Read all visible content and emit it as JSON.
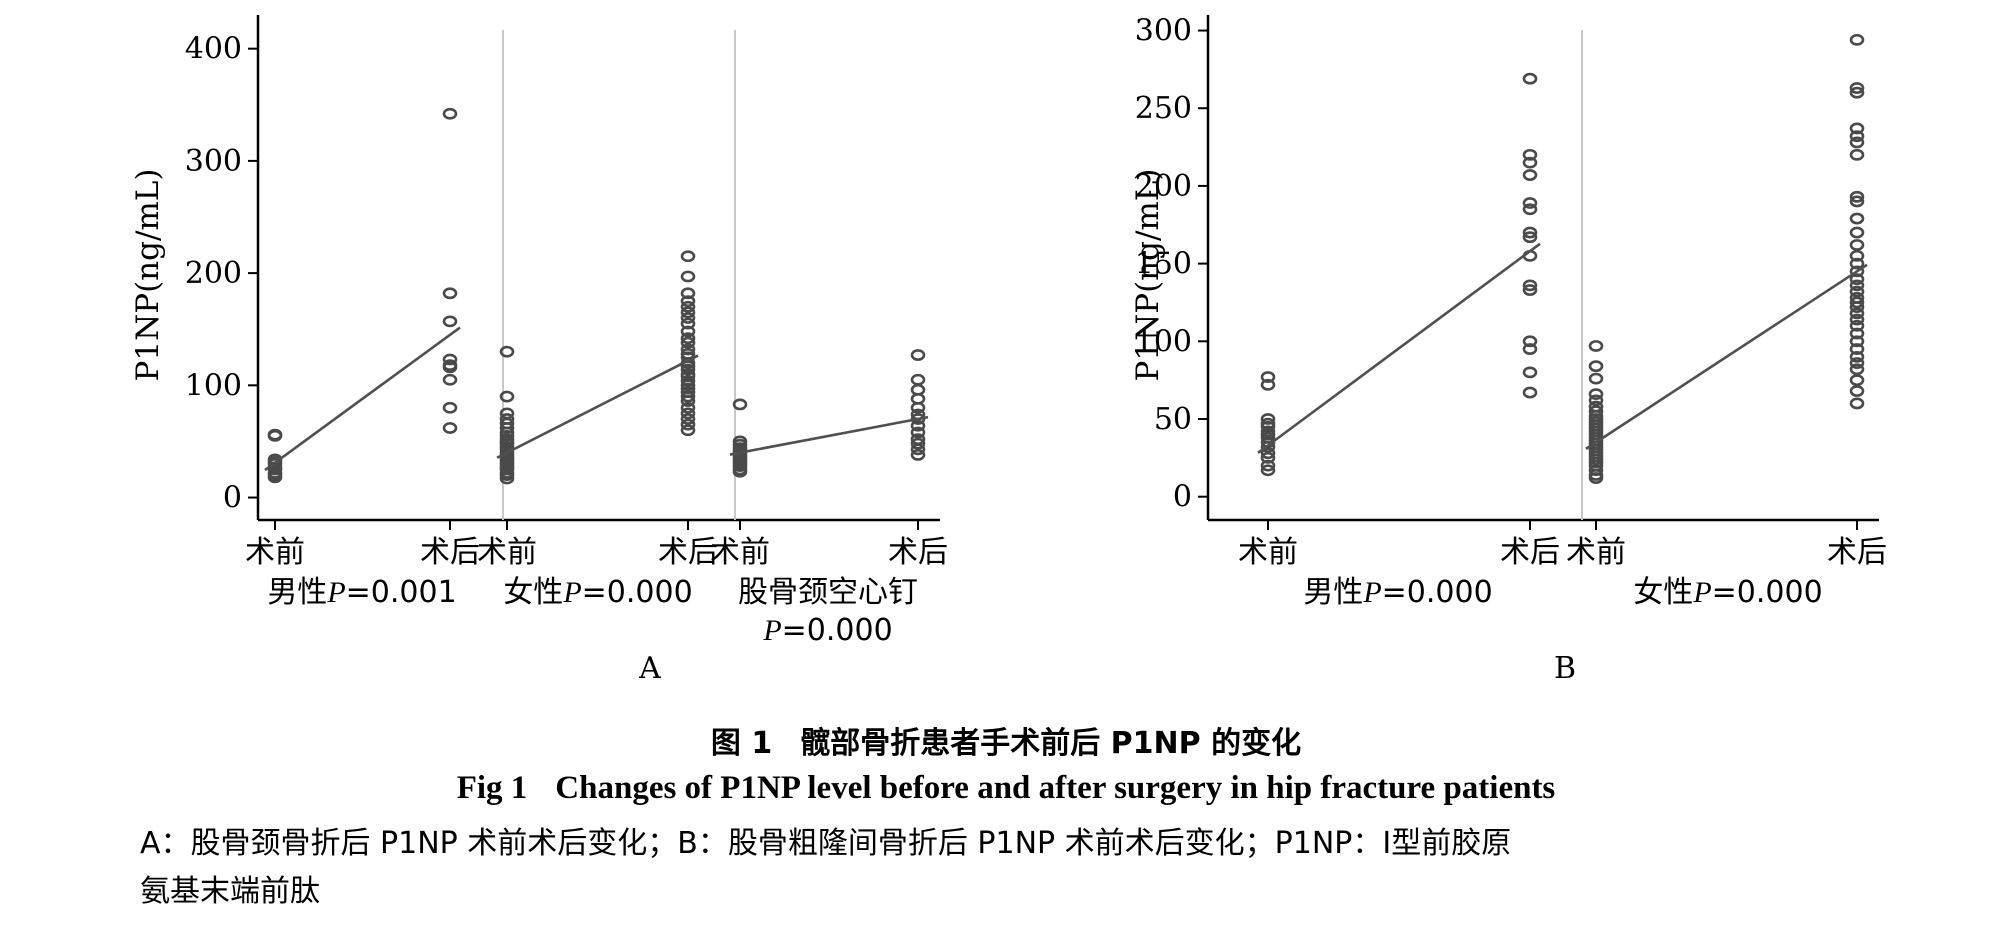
{
  "chart_data": [
    {
      "panel": "A",
      "type": "scatter",
      "ylabel": "P1NP(ng/mL)",
      "ylim": [
        -20,
        430
      ],
      "yticks": [
        0,
        100,
        200,
        300,
        400
      ],
      "groups": [
        {
          "label_main": "男性",
          "label_p": "P=0.001",
          "categories": [
            "术前",
            "术后"
          ],
          "trend": [
            31,
            145
          ],
          "points": [
            {
              "x": 0,
              "values": [
                55,
                56,
                34,
                32,
                30,
                27,
                25,
                22,
                20,
                18
              ]
            },
            {
              "x": 1,
              "values": [
                342,
                182,
                157,
                123,
                118,
                116,
                105,
                80,
                62
              ]
            }
          ]
        },
        {
          "label_main": "女性",
          "label_p": "P=0.000",
          "categories": [
            "术前",
            "术后"
          ],
          "trend": [
            40,
            122
          ],
          "points": [
            {
              "x": 0,
              "values": [
                130,
                90,
                75,
                70,
                66,
                62,
                58,
                55,
                52,
                50,
                48,
                45,
                43,
                40,
                38,
                36,
                35,
                33,
                31,
                30,
                28,
                26,
                25,
                22,
                20,
                17
              ]
            },
            {
              "x": 1,
              "values": [
                215,
                197,
                182,
                175,
                170,
                165,
                160,
                155,
                148,
                142,
                138,
                132,
                128,
                125,
                120,
                117,
                114,
                110,
                108,
                104,
                100,
                97,
                94,
                90,
                86,
                80,
                75,
                70,
                65,
                60
              ]
            }
          ]
        },
        {
          "label_main": "股骨颈空心钉",
          "label_p": "P=0.000",
          "categories": [
            "术前",
            "术后"
          ],
          "trend": [
            40,
            70
          ],
          "points": [
            {
              "x": 0,
              "values": [
                83,
                50,
                47,
                44,
                42,
                40,
                38,
                36,
                34,
                32,
                30,
                28,
                25,
                23
              ]
            },
            {
              "x": 1,
              "values": [
                127,
                105,
                96,
                88,
                80,
                74,
                70,
                64,
                58,
                52,
                48,
                43,
                38
              ]
            }
          ]
        }
      ],
      "panel_label": "A"
    },
    {
      "panel": "B",
      "type": "scatter",
      "ylabel": "P1NP(ng/mL)",
      "ylim": [
        -15,
        310
      ],
      "yticks": [
        0,
        50,
        100,
        150,
        200,
        250,
        300
      ],
      "groups": [
        {
          "label_main": "男性",
          "label_p": "P=0.000",
          "categories": [
            "术前",
            "术后"
          ],
          "trend": [
            33,
            158
          ],
          "points": [
            {
              "x": 0,
              "values": [
                77,
                72,
                50,
                47,
                45,
                42,
                40,
                38,
                35,
                32,
                28,
                25,
                20,
                17
              ]
            },
            {
              "x": 1,
              "values": [
                269,
                220,
                215,
                207,
                189,
                185,
                170,
                167,
                155,
                136,
                133,
                100,
                95,
                80,
                67
              ]
            }
          ]
        },
        {
          "label_main": "女性",
          "label_p": "P=0.000",
          "categories": [
            "术前",
            "术后"
          ],
          "trend": [
            35,
            145
          ],
          "points": [
            {
              "x": 0,
              "values": [
                97,
                84,
                76,
                66,
                62,
                58,
                55,
                52,
                50,
                48,
                46,
                44,
                42,
                40,
                38,
                36,
                34,
                32,
                30,
                28,
                26,
                24,
                22,
                20,
                17,
                14,
                12
              ]
            },
            {
              "x": 1,
              "values": [
                294,
                263,
                260,
                237,
                232,
                228,
                220,
                193,
                190,
                179,
                170,
                162,
                155,
                150,
                145,
                140,
                136,
                132,
                128,
                125,
                122,
                118,
                114,
                110,
                105,
                100,
                95,
                90,
                86,
                82,
                75,
                68,
                60
              ]
            }
          ]
        }
      ],
      "panel_label": "B"
    }
  ],
  "caption": {
    "cn_fig": "图 1",
    "cn_text": "髋部骨折患者手术前后 P1NP 的变化",
    "en_fig": "Fig 1",
    "en_text": "Changes of P1NP level before and after surgery in hip fracture patients"
  },
  "notes": {
    "line1": "A：股骨颈骨折后 P1NP 术前术后变化；B：股骨粗隆间骨折后 P1NP 术前术后变化；P1NP：Ⅰ型前胶原",
    "line2": "氨基末端前肽"
  },
  "colors": {
    "marker": "#4a4a4a",
    "trend": "#505050",
    "axis": "#000000",
    "divider": "#c8c8c8"
  }
}
